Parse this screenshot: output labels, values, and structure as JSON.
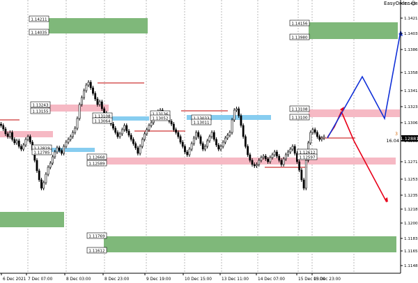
{
  "app": {
    "one_click_label": "EasyOrder",
    "info_small": "3",
    "info_value": "16.04"
  },
  "colors": {
    "bg": "#ffffff",
    "candle": "#000000",
    "grid": "#b8b8b8",
    "green_zone": "#7fb87a",
    "pink_zone": "#f6b9c4",
    "blue_zone": "#87cdf0",
    "red_line": "#c00000",
    "arrow_red": "#e8001a",
    "arrow_blue": "#1030d8",
    "label_border": "#000000"
  },
  "price_axis": {
    "ticks": [
      "1.14385",
      "1.14210",
      "1.14035",
      "1.13860",
      "1.13585",
      "1.13410",
      "1.13235",
      "1.13060",
      "1.12885",
      "1.12710",
      "1.12530",
      "1.12355",
      "1.12180",
      "1.12005",
      "1.11830",
      "1.11655",
      "1.11480",
      "1.11305"
    ],
    "current_price": "1.12881"
  },
  "time_axis": {
    "ticks": [
      "6 Dec 2021",
      "7 Dec 07:00",
      "8 Dec 03:00",
      "8 Dec 23:00",
      "9 Dec 19:00",
      "10 Dec 15:00",
      "13 Dec 11:00",
      "14 Dec 07:00",
      "15 Dec 03:00",
      "15 Dec 23:00"
    ]
  },
  "level_labels": [
    "1.14211",
    "1.14035",
    "1.14156",
    "1.13980",
    "1.13243",
    "1.13155",
    "1.13108",
    "1.13064",
    "1.13136",
    "1.13052",
    "1.13033",
    "1.13011",
    "1.13108",
    "1.13100",
    "1.12819",
    "1.12785",
    "1.12668",
    "1.12589",
    "1.11769",
    "1.11612",
    "1.12612",
    "1.12597"
  ],
  "zones": [
    {
      "type": "green",
      "top": "1.14211",
      "bottom": "1.14035"
    },
    {
      "type": "green",
      "top": "1.14156",
      "bottom": "1.13980"
    },
    {
      "type": "pink",
      "top": "1.13243",
      "bottom": "1.13155"
    },
    {
      "type": "pink",
      "top": "1.13108",
      "bottom": "1.13100"
    },
    {
      "type": "blue",
      "top": "1.13064",
      "bottom": "1.13052"
    },
    {
      "type": "blue",
      "top": "1.12819",
      "bottom": "1.12785"
    },
    {
      "type": "pink",
      "top": "1.12668",
      "bottom": "1.12589"
    },
    {
      "type": "green",
      "top": "1.11769",
      "bottom": "1.11612"
    }
  ]
}
